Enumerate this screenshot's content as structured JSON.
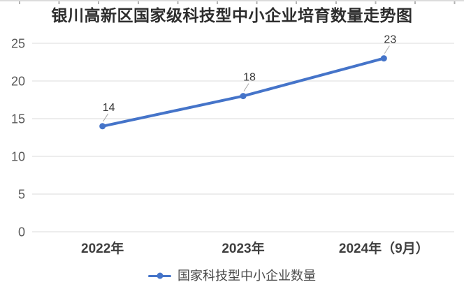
{
  "chart_data": {
    "type": "line",
    "title": "银川高新区国家级科技型中小企业培育数量走势图",
    "categories": [
      "2022年",
      "2023年",
      "2024年（9月）"
    ],
    "series": [
      {
        "name": "国家科技型中小企业数量",
        "values": [
          14,
          18,
          23
        ]
      }
    ],
    "data_labels": [
      "14",
      "18",
      "23"
    ],
    "xlabel": "",
    "ylabel": "",
    "ylim": [
      0,
      25
    ],
    "yticks": [
      0,
      5,
      10,
      15,
      20,
      25
    ],
    "grid": true,
    "legend_position": "bottom",
    "line_color": "#4574c9",
    "marker_color": "#4574c9",
    "gridline_color": "#e2e2e2",
    "leader_line_color": "#a8a8a8",
    "axis_label_color": "#595959"
  }
}
